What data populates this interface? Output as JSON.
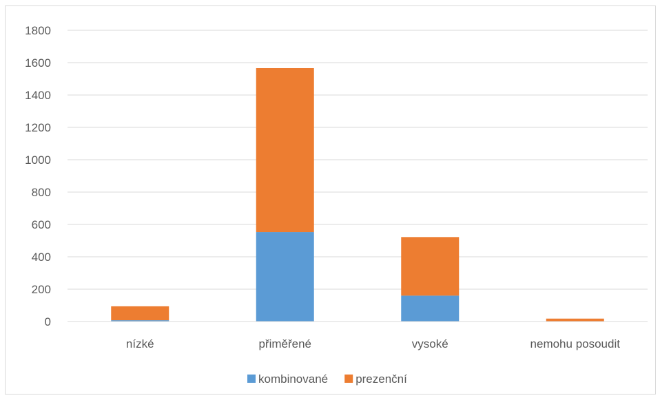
{
  "chart_data": {
    "type": "bar",
    "stacked": true,
    "title": "",
    "xlabel": "",
    "ylabel": "",
    "categories": [
      "nízké",
      "přiměřené",
      "vysoké",
      "nemohu posoudit"
    ],
    "series": [
      {
        "name": "kombinované",
        "color": "#5b9bd5",
        "values": [
          8,
          553,
          160,
          0
        ]
      },
      {
        "name": "prezenční",
        "color": "#ed7d31",
        "values": [
          86,
          1013,
          362,
          18
        ]
      }
    ],
    "ylim": [
      0,
      1800
    ],
    "yticks": [
      "0",
      "200",
      "400",
      "600",
      "800",
      "1000",
      "1200",
      "1400",
      "1600",
      "1800"
    ],
    "grid": true,
    "legend_position": "bottom",
    "colors": {
      "grid": "#d9d9d9",
      "axis": "#d9d9d9",
      "text": "#595959"
    }
  }
}
